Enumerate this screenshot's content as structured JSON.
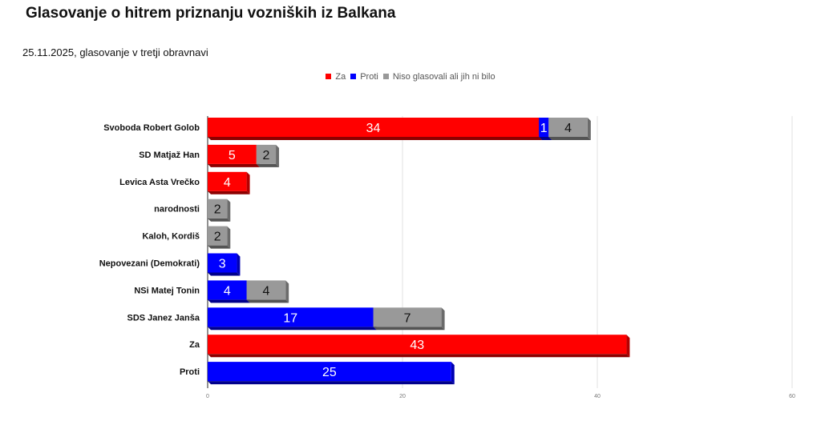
{
  "title": "Glasovanje o hitrem priznanju vozniških iz Balkana",
  "subtitle": "25.11.2025, glasovanje v tretji obravnavi",
  "chart_data": {
    "type": "bar",
    "orientation": "horizontal",
    "stacked": true,
    "categories": [
      "Svoboda Robert Golob",
      "SD Matjaž Han",
      "Levica Asta Vrečko",
      "narodnosti",
      "Kaloh, Kordiš",
      "Nepovezani (Demokrati)",
      "NSi Matej Tonin",
      "SDS Janez Janša",
      "Za",
      "Proti"
    ],
    "series": [
      {
        "name": "Za",
        "color": "#ff0000",
        "values": [
          34,
          5,
          4,
          0,
          0,
          0,
          0,
          0,
          43,
          0
        ]
      },
      {
        "name": "Proti",
        "color": "#0000ff",
        "values": [
          1,
          0,
          0,
          0,
          0,
          3,
          4,
          17,
          0,
          25
        ]
      },
      {
        "name": "Niso glasovali ali jih ni bilo",
        "color": "#999999",
        "values": [
          4,
          2,
          0,
          2,
          2,
          0,
          4,
          7,
          0,
          0
        ]
      }
    ],
    "xlim": [
      0,
      60
    ],
    "xticks": [
      "0",
      "20",
      "40",
      "60"
    ],
    "grid": true,
    "legend_position": "top"
  }
}
